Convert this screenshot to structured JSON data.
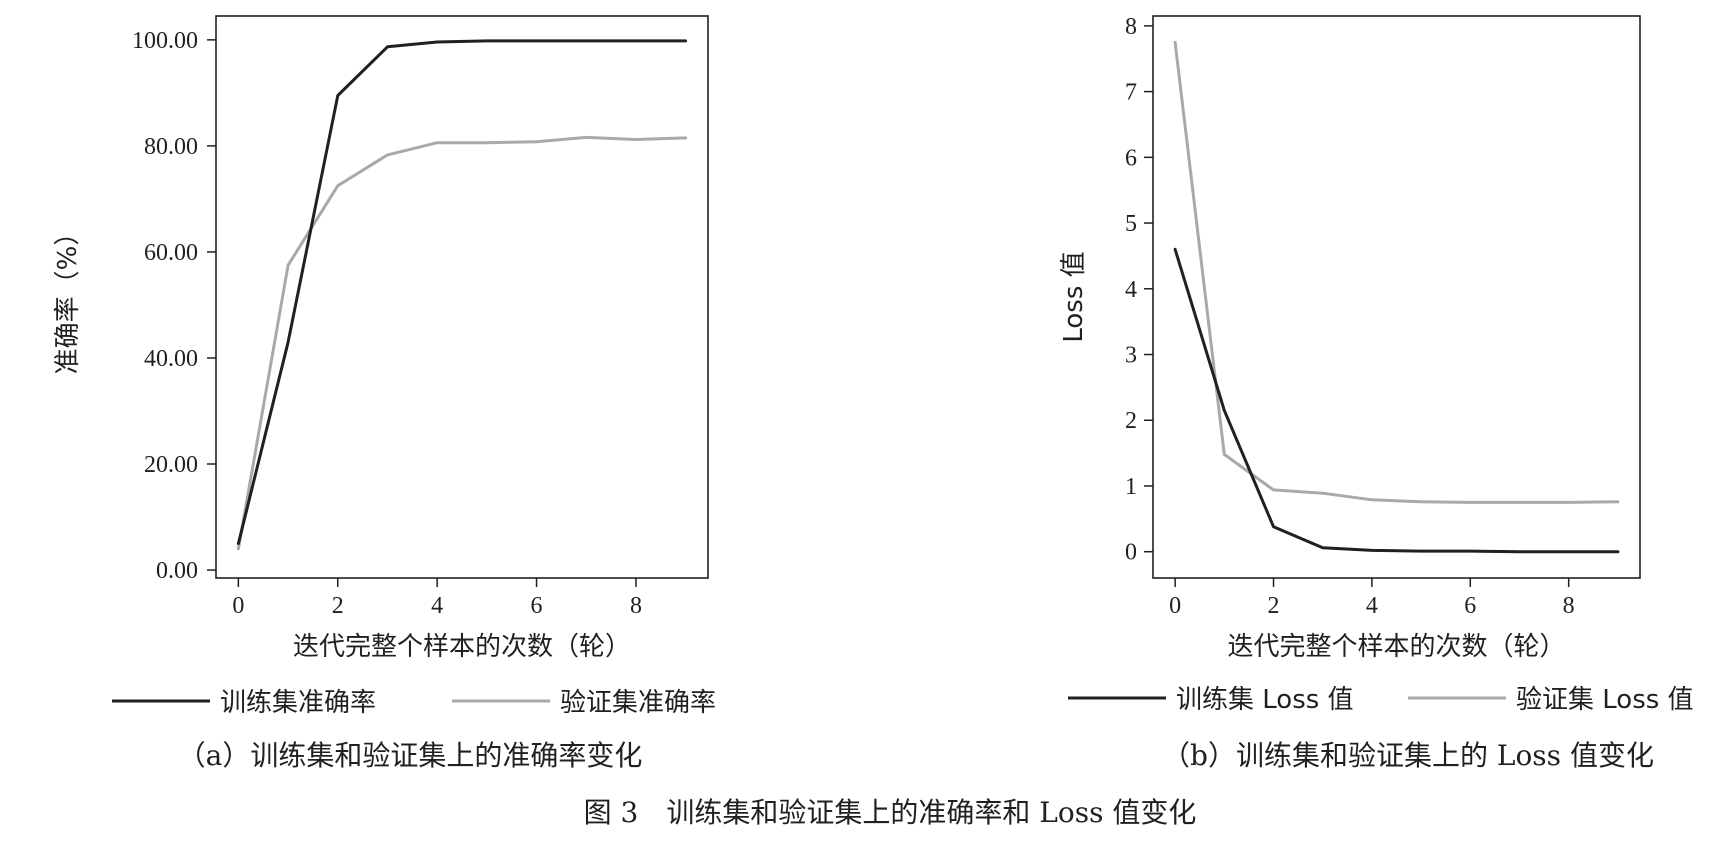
{
  "figure_caption": "图 3　训练集和验证集上的准确率和 Loss 值变化",
  "colors": {
    "train": "#231f20",
    "val": "#a7a9ac",
    "axis": "#231f20"
  },
  "chart_data": [
    {
      "type": "line",
      "subcaption": "（a）训练集和验证集上的准确率变化",
      "xlabel": "迭代完整个样本的次数（轮）",
      "ylabel": "准确率（%）",
      "xlim": [
        -0.45,
        9.45
      ],
      "ylim": [
        -1.5,
        104.5
      ],
      "xticks": [
        0,
        2,
        4,
        6,
        8
      ],
      "xtick_labels": [
        "0",
        "2",
        "4",
        "6",
        "8"
      ],
      "yticks": [
        0,
        20,
        40,
        60,
        80,
        100
      ],
      "ytick_labels": [
        "0.00",
        "20.00",
        "40.00",
        "60.00",
        "80.00",
        "100.00"
      ],
      "grid": false,
      "legend_position": "bottom",
      "x": [
        0,
        1,
        2,
        3,
        4,
        5,
        6,
        7,
        8,
        9
      ],
      "series": [
        {
          "name": "训练集准确率",
          "color_key": "train",
          "values": [
            5.0,
            43.0,
            89.5,
            98.7,
            99.6,
            99.8,
            99.8,
            99.8,
            99.8,
            99.8
          ]
        },
        {
          "name": "验证集准确率",
          "color_key": "val",
          "values": [
            4.0,
            57.5,
            72.5,
            78.3,
            80.6,
            80.6,
            80.8,
            81.6,
            81.2,
            81.5
          ]
        }
      ]
    },
    {
      "type": "line",
      "subcaption": "（b）训练集和验证集上的 Loss 值变化",
      "xlabel": "迭代完整个样本的次数（轮）",
      "ylabel": "Loss 值",
      "xlim": [
        -0.45,
        9.45
      ],
      "ylim": [
        -0.4,
        8.15
      ],
      "xticks": [
        0,
        2,
        4,
        6,
        8
      ],
      "xtick_labels": [
        "0",
        "2",
        "4",
        "6",
        "8"
      ],
      "yticks": [
        0,
        1,
        2,
        3,
        4,
        5,
        6,
        7,
        8
      ],
      "ytick_labels": [
        "0",
        "1",
        "2",
        "3",
        "4",
        "5",
        "6",
        "7",
        "8"
      ],
      "grid": false,
      "legend_position": "bottom",
      "x": [
        0,
        1,
        2,
        3,
        4,
        5,
        6,
        7,
        8,
        9
      ],
      "series": [
        {
          "name": "训练集 Loss 值",
          "color_key": "train",
          "values": [
            4.6,
            2.15,
            0.38,
            0.06,
            0.02,
            0.01,
            0.01,
            0.0,
            0.0,
            0.0
          ]
        },
        {
          "name": "验证集 Loss 值",
          "color_key": "val",
          "values": [
            7.75,
            1.48,
            0.94,
            0.89,
            0.79,
            0.76,
            0.75,
            0.75,
            0.75,
            0.76
          ]
        }
      ]
    }
  ]
}
